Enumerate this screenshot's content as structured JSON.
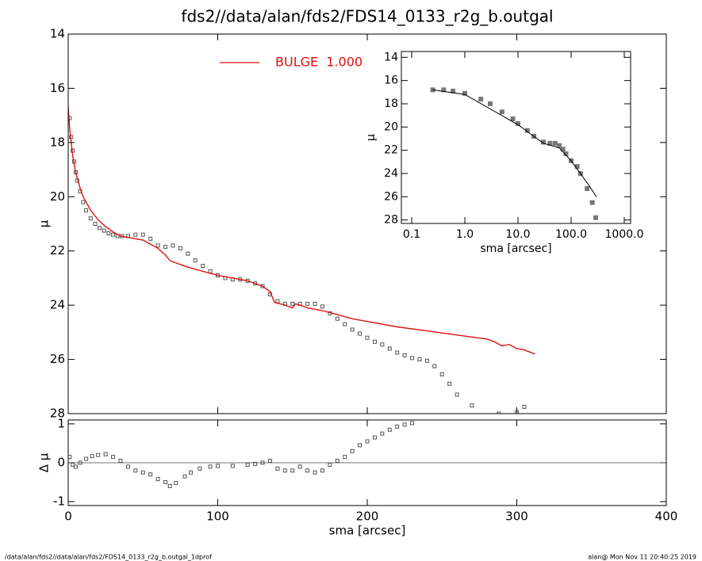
{
  "footer_left": "/data/alan/fds2//data/alan/fds2/FDS14_0133_r2g_b.outgal_1dprof",
  "footer_right": "alan@  Mon Nov 11 20:40:25 2019",
  "chart_data": [
    {
      "type": "line",
      "title": "fds2//data/alan/fds2/FDS14_0133_r2g_b.outgal",
      "ylabel": "μ",
      "xlim": [
        0,
        400
      ],
      "xticks": [
        0,
        100,
        200,
        300,
        400
      ],
      "show_xtick_labels": false,
      "ylim": [
        28,
        14
      ],
      "yticks": [
        14,
        16,
        18,
        20,
        22,
        24,
        26,
        28
      ],
      "legend": "upper center",
      "series": [
        {
          "style": "markers",
          "color": "#555555",
          "x": [
            1,
            2,
            3,
            4,
            5,
            6,
            8,
            10,
            12,
            15,
            18,
            21,
            24,
            27,
            30,
            33,
            36,
            40,
            45,
            50,
            55,
            60,
            65,
            70,
            75,
            80,
            85,
            90,
            95,
            100,
            105,
            110,
            115,
            120,
            125,
            130,
            135,
            140,
            145,
            150,
            155,
            160,
            165,
            170,
            175,
            180,
            185,
            190,
            195,
            200,
            205,
            210,
            215,
            220,
            225,
            230,
            235,
            240,
            245,
            250,
            255,
            260,
            270,
            288,
            300,
            305
          ],
          "values": [
            17.1,
            17.8,
            18.3,
            18.7,
            19.1,
            19.4,
            19.8,
            20.2,
            20.5,
            20.8,
            21.0,
            21.15,
            21.25,
            21.35,
            21.4,
            21.45,
            21.45,
            21.45,
            21.4,
            21.4,
            21.55,
            21.8,
            21.85,
            21.8,
            21.9,
            22.1,
            22.35,
            22.55,
            22.75,
            22.9,
            23.0,
            23.05,
            23.05,
            23.1,
            23.2,
            23.3,
            23.6,
            23.85,
            23.95,
            23.95,
            23.95,
            23.95,
            23.95,
            24.05,
            24.3,
            24.5,
            24.7,
            24.9,
            25.05,
            25.2,
            25.35,
            25.45,
            25.6,
            25.75,
            25.85,
            25.95,
            26.0,
            26.05,
            26.25,
            26.55,
            26.9,
            27.3,
            27.7,
            28.0,
            27.95,
            27.75
          ]
        },
        {
          "style": "line",
          "name": "BULGE  1.000",
          "color": "#dd1111",
          "x": [
            0,
            1,
            2,
            3,
            5,
            8,
            10,
            15,
            20,
            25,
            30,
            35,
            40,
            45,
            50,
            55,
            60,
            65,
            68,
            70,
            75,
            80,
            90,
            100,
            110,
            120,
            130,
            135,
            138,
            145,
            150,
            152,
            155,
            160,
            170,
            180,
            190,
            200,
            220,
            240,
            260,
            280,
            285,
            290,
            295,
            300,
            305,
            312
          ],
          "values": [
            16.7,
            17.5,
            18.0,
            18.5,
            19.1,
            19.7,
            20.0,
            20.5,
            20.85,
            21.1,
            21.3,
            21.45,
            21.5,
            21.55,
            21.6,
            21.75,
            21.9,
            22.15,
            22.35,
            22.4,
            22.5,
            22.6,
            22.75,
            22.9,
            23.0,
            23.1,
            23.3,
            23.5,
            23.9,
            24.0,
            24.1,
            23.95,
            24.0,
            24.1,
            24.2,
            24.35,
            24.5,
            24.6,
            24.8,
            24.95,
            25.1,
            25.25,
            25.35,
            25.5,
            25.45,
            25.6,
            25.65,
            25.8
          ]
        }
      ]
    },
    {
      "type": "line",
      "ylabel": "Δ μ",
      "xlabel": "sma [arcsec]",
      "xlim": [
        0,
        400
      ],
      "xticks": [
        0,
        100,
        200,
        300,
        400
      ],
      "ylim": [
        -1.1,
        1.1
      ],
      "yticks": [
        -1,
        0,
        1
      ],
      "refline": 0,
      "series": [
        {
          "style": "markers",
          "color": "#555555",
          "x": [
            1,
            3,
            5,
            8,
            12,
            16,
            20,
            25,
            30,
            35,
            40,
            45,
            50,
            55,
            60,
            65,
            68,
            72,
            78,
            82,
            88,
            95,
            100,
            110,
            120,
            125,
            130,
            135,
            140,
            145,
            150,
            155,
            160,
            165,
            170,
            175,
            180,
            185,
            190,
            195,
            200,
            205,
            210,
            215,
            220,
            225,
            230
          ],
          "values": [
            0.15,
            -0.05,
            -0.1,
            0.0,
            0.1,
            0.17,
            0.2,
            0.22,
            0.15,
            0.05,
            -0.1,
            -0.2,
            -0.25,
            -0.3,
            -0.42,
            -0.5,
            -0.6,
            -0.52,
            -0.35,
            -0.25,
            -0.15,
            -0.1,
            -0.08,
            -0.08,
            -0.05,
            -0.03,
            0.0,
            0.05,
            -0.15,
            -0.2,
            -0.2,
            -0.1,
            -0.2,
            -0.25,
            -0.2,
            -0.05,
            0.05,
            0.15,
            0.3,
            0.45,
            0.55,
            0.65,
            0.75,
            0.85,
            0.93,
            0.98,
            1.02
          ]
        }
      ]
    },
    {
      "type": "line",
      "ylabel": "μ",
      "xlabel": "sma [arcsec]",
      "xlog": true,
      "xlim": [
        0.064,
        1316
      ],
      "xticks": [
        {
          "value": 0.1,
          "label": "0.1"
        },
        {
          "value": 1,
          "label": "1.0"
        },
        {
          "value": 10,
          "label": "10.0"
        },
        {
          "value": 100,
          "label": "100.0"
        },
        {
          "value": 1000,
          "label": "1000.0"
        }
      ],
      "ylim": [
        28.3,
        13.5
      ],
      "yticks": [
        14,
        16,
        18,
        20,
        22,
        24,
        26,
        28
      ],
      "series": [
        {
          "style": "markers",
          "color": "#777777",
          "x": [
            0.25,
            0.4,
            0.6,
            1,
            2,
            3,
            5,
            8,
            10,
            15,
            20,
            30,
            40,
            50,
            60,
            70,
            80,
            100,
            130,
            150,
            200,
            250,
            290
          ],
          "values": [
            16.8,
            16.8,
            16.9,
            17.1,
            17.6,
            18.0,
            18.7,
            19.3,
            19.7,
            20.3,
            20.8,
            21.3,
            21.4,
            21.4,
            21.6,
            21.9,
            22.3,
            22.9,
            23.4,
            24.0,
            25.3,
            26.5,
            27.8
          ]
        },
        {
          "style": "line",
          "color": "#000000",
          "x": [
            0.25,
            1,
            10,
            30,
            60,
            100,
            200,
            300
          ],
          "values": [
            16.8,
            17.2,
            19.8,
            21.4,
            21.8,
            22.9,
            24.8,
            26.0
          ]
        }
      ]
    }
  ]
}
